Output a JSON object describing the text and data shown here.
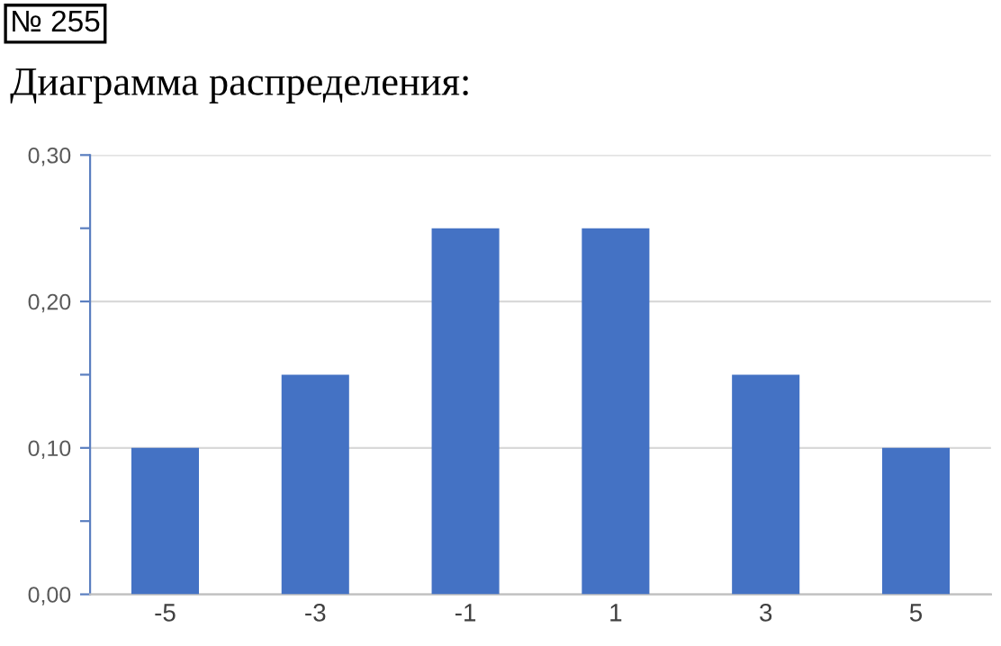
{
  "chart_data": {
    "type": "bar",
    "title": "Диаграмма распределения:",
    "annotations": [
      "№ 255"
    ],
    "categories": [
      "-5",
      "-3",
      "-1",
      "1",
      "3",
      "5"
    ],
    "values": [
      0.1,
      0.15,
      0.25,
      0.25,
      0.15,
      0.1
    ],
    "color": "#4472c4",
    "ylim": [
      0,
      0.3
    ],
    "yticks": [
      {
        "value": 0,
        "label": "0,00"
      },
      {
        "value": 0.05,
        "label": null
      },
      {
        "value": 0.1,
        "label": "0,10"
      },
      {
        "value": 0.15,
        "label": null
      },
      {
        "value": 0.2,
        "label": "0,20"
      },
      {
        "value": 0.25,
        "label": null
      },
      {
        "value": 0.3,
        "label": "0,30"
      }
    ],
    "grid": "y"
  }
}
